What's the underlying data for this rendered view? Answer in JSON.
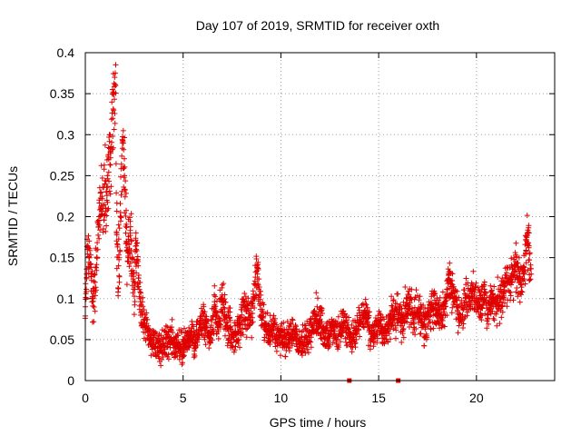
{
  "chart_data": {
    "type": "scatter",
    "title": "Day 107 of 2019, SRMTID for receiver oxth",
    "xlabel": "GPS time / hours",
    "ylabel": "SRMTID / TECUs",
    "xlim": [
      0,
      24
    ],
    "ylim": [
      0,
      0.4
    ],
    "xticks": [
      0,
      5,
      10,
      15,
      20
    ],
    "xtick_labels": [
      "0",
      "5",
      "10",
      "15",
      "20"
    ],
    "yticks": [
      0,
      0.05,
      0.1,
      0.15,
      0.2,
      0.25,
      0.3,
      0.35,
      0.4
    ],
    "ytick_labels": [
      "0",
      "0.05",
      "0.1",
      "0.15",
      "0.2",
      "0.25",
      "0.3",
      "0.35",
      "0.4"
    ],
    "grid": true,
    "marker": "+",
    "series_color": "#e00000",
    "series": [
      {
        "name": "SRMTID",
        "x": [
          0.0,
          0.1,
          0.2,
          0.3,
          0.4,
          0.5,
          0.6,
          0.7,
          0.8,
          0.9,
          1.0,
          1.1,
          1.2,
          1.3,
          1.4,
          1.5,
          1.55,
          1.6,
          1.7,
          1.8,
          1.9,
          2.0,
          2.1,
          2.2,
          2.3,
          2.4,
          2.5,
          2.6,
          2.7,
          2.8,
          2.9,
          3.0,
          3.2,
          3.4,
          3.6,
          3.8,
          4.0,
          4.2,
          4.4,
          4.6,
          4.8,
          5.0,
          5.2,
          5.4,
          5.6,
          5.8,
          6.0,
          6.2,
          6.4,
          6.6,
          6.8,
          7.0,
          7.2,
          7.4,
          7.6,
          7.8,
          8.0,
          8.2,
          8.4,
          8.6,
          8.8,
          9.0,
          9.2,
          9.4,
          9.6,
          9.8,
          10.0,
          10.2,
          10.4,
          10.6,
          10.8,
          11.0,
          11.2,
          11.4,
          11.6,
          11.8,
          12.0,
          12.2,
          12.4,
          12.6,
          12.8,
          13.0,
          13.2,
          13.4,
          13.6,
          13.8,
          14.0,
          14.2,
          14.4,
          14.6,
          14.8,
          15.0,
          15.2,
          15.4,
          15.6,
          15.8,
          16.0,
          16.2,
          16.4,
          16.6,
          16.8,
          17.0,
          17.2,
          17.4,
          17.6,
          17.8,
          18.0,
          18.2,
          18.4,
          18.6,
          18.8,
          19.0,
          19.2,
          19.4,
          19.6,
          19.8,
          20.0,
          20.2,
          20.4,
          20.6,
          20.8,
          21.0,
          21.2,
          21.4,
          21.6,
          21.8,
          22.0,
          22.2,
          22.4,
          22.6,
          22.8
        ],
        "y": [
          0.09,
          0.16,
          0.15,
          0.13,
          0.1,
          0.12,
          0.15,
          0.2,
          0.23,
          0.21,
          0.24,
          0.22,
          0.27,
          0.28,
          0.32,
          0.37,
          0.36,
          0.18,
          0.14,
          0.2,
          0.29,
          0.25,
          0.17,
          0.15,
          0.18,
          0.13,
          0.12,
          0.16,
          0.14,
          0.1,
          0.08,
          0.07,
          0.06,
          0.05,
          0.045,
          0.04,
          0.04,
          0.045,
          0.05,
          0.04,
          0.045,
          0.04,
          0.05,
          0.055,
          0.045,
          0.06,
          0.07,
          0.065,
          0.05,
          0.09,
          0.06,
          0.1,
          0.07,
          0.065,
          0.05,
          0.06,
          0.08,
          0.09,
          0.07,
          0.1,
          0.13,
          0.08,
          0.07,
          0.06,
          0.065,
          0.05,
          0.055,
          0.045,
          0.05,
          0.06,
          0.05,
          0.045,
          0.05,
          0.055,
          0.065,
          0.08,
          0.075,
          0.06,
          0.05,
          0.07,
          0.055,
          0.06,
          0.07,
          0.065,
          0.05,
          0.06,
          0.07,
          0.075,
          0.08,
          0.05,
          0.06,
          0.07,
          0.065,
          0.06,
          0.075,
          0.08,
          0.08,
          0.07,
          0.09,
          0.1,
          0.08,
          0.085,
          0.07,
          0.065,
          0.08,
          0.09,
          0.085,
          0.08,
          0.09,
          0.12,
          0.1,
          0.09,
          0.08,
          0.095,
          0.1,
          0.11,
          0.1,
          0.09,
          0.105,
          0.08,
          0.1,
          0.09,
          0.1,
          0.11,
          0.12,
          0.13,
          0.14,
          0.12,
          0.13,
          0.18,
          0.13
        ],
        "spread": [
          0.03,
          0.03,
          0.03,
          0.03,
          0.03,
          0.04,
          0.04,
          0.05,
          0.05,
          0.05,
          0.05,
          0.05,
          0.05,
          0.05,
          0.06,
          0.06,
          0.06,
          0.05,
          0.05,
          0.05,
          0.05,
          0.05,
          0.04,
          0.04,
          0.04,
          0.04,
          0.04,
          0.04,
          0.03,
          0.03,
          0.025,
          0.02,
          0.02,
          0.02,
          0.02,
          0.02,
          0.02,
          0.02,
          0.02,
          0.02,
          0.02,
          0.02,
          0.02,
          0.02,
          0.02,
          0.02,
          0.025,
          0.025,
          0.025,
          0.03,
          0.025,
          0.03,
          0.025,
          0.025,
          0.02,
          0.025,
          0.025,
          0.03,
          0.025,
          0.03,
          0.03,
          0.025,
          0.025,
          0.02,
          0.02,
          0.02,
          0.02,
          0.02,
          0.02,
          0.02,
          0.02,
          0.02,
          0.02,
          0.02,
          0.02,
          0.025,
          0.025,
          0.02,
          0.02,
          0.02,
          0.02,
          0.02,
          0.02,
          0.02,
          0.02,
          0.02,
          0.02,
          0.02,
          0.025,
          0.02,
          0.02,
          0.02,
          0.02,
          0.02,
          0.025,
          0.025,
          0.025,
          0.025,
          0.025,
          0.025,
          0.025,
          0.025,
          0.025,
          0.02,
          0.025,
          0.025,
          0.025,
          0.025,
          0.025,
          0.03,
          0.025,
          0.025,
          0.025,
          0.025,
          0.025,
          0.025,
          0.025,
          0.025,
          0.025,
          0.025,
          0.025,
          0.025,
          0.025,
          0.025,
          0.03,
          0.03,
          0.03,
          0.03,
          0.03,
          0.03,
          0.03
        ],
        "note": "Dense scatter (~3000 points); x/y trace the visual centre of the cloud every 0.1–0.2 h, spread is the approximate vertical half-width of the cloud."
      }
    ],
    "zero_markers_x": [
      13.5,
      16.0
    ]
  }
}
